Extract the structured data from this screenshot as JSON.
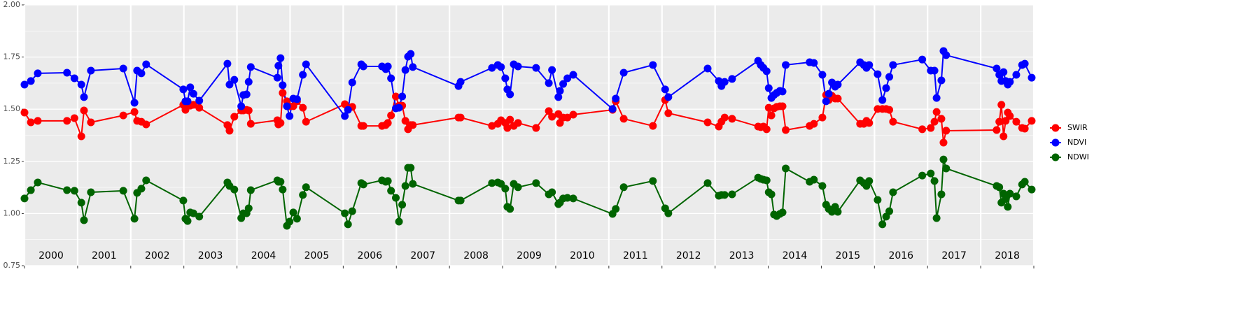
{
  "chart_data": {
    "type": "line",
    "x": [
      2000.0,
      2000.12,
      2000.25,
      2000.8,
      2000.94,
      2001.07,
      2001.12,
      2001.25,
      2001.86,
      2002.07,
      2002.12,
      2002.2,
      2002.29,
      2002.99,
      2003.03,
      2003.07,
      2003.12,
      2003.18,
      2003.29,
      2003.82,
      2003.86,
      2003.95,
      2004.08,
      2004.12,
      2004.18,
      2004.22,
      2004.26,
      2004.76,
      2004.78,
      2004.82,
      2004.86,
      2004.94,
      2004.99,
      2005.06,
      2005.13,
      2005.24,
      2005.3,
      2006.03,
      2006.09,
      2006.17,
      2006.34,
      2006.38,
      2006.73,
      2006.8,
      2006.84,
      2006.9,
      2006.99,
      2007.05,
      2007.11,
      2007.17,
      2007.22,
      2007.27,
      2007.31,
      2008.17,
      2008.21,
      2008.8,
      2008.91,
      2008.97,
      2009.05,
      2009.09,
      2009.14,
      2009.21,
      2009.29,
      2009.63,
      2009.87,
      2009.93,
      2010.05,
      2010.08,
      2010.14,
      2010.22,
      2010.33,
      2011.07,
      2011.13,
      2011.28,
      2011.83,
      2012.06,
      2012.12,
      2012.86,
      2013.07,
      2013.12,
      2013.18,
      2013.32,
      2013.81,
      2013.86,
      2013.91,
      2013.97,
      2014.01,
      2014.06,
      2014.11,
      2014.16,
      2014.22,
      2014.27,
      2014.33,
      2014.78,
      2014.86,
      2015.02,
      2015.09,
      2015.14,
      2015.2,
      2015.26,
      2015.31,
      2015.73,
      2015.8,
      2015.85,
      2015.9,
      2016.06,
      2016.15,
      2016.22,
      2016.28,
      2016.35,
      2016.9,
      2017.06,
      2017.13,
      2017.17,
      2017.26,
      2017.3,
      2017.35,
      2018.3,
      2018.35,
      2018.39,
      2018.43,
      2018.47,
      2018.51,
      2018.55,
      2018.67,
      2018.78,
      2018.83,
      2018.96
    ],
    "series": [
      {
        "name": "SWIR",
        "color": "#ff0000",
        "values": [
          1.484,
          1.437,
          1.444,
          1.444,
          1.457,
          1.37,
          1.494,
          1.437,
          1.47,
          1.487,
          1.444,
          1.44,
          1.427,
          1.521,
          1.497,
          1.521,
          1.517,
          1.521,
          1.507,
          1.424,
          1.397,
          1.464,
          1.494,
          1.494,
          1.497,
          1.494,
          1.43,
          1.447,
          1.427,
          1.434,
          1.578,
          1.538,
          1.514,
          1.514,
          1.538,
          1.507,
          1.44,
          1.524,
          1.504,
          1.511,
          1.42,
          1.42,
          1.42,
          1.424,
          1.434,
          1.47,
          1.561,
          1.517,
          1.517,
          1.444,
          1.404,
          1.424,
          1.424,
          1.46,
          1.46,
          1.42,
          1.43,
          1.447,
          1.434,
          1.41,
          1.45,
          1.42,
          1.434,
          1.41,
          1.491,
          1.464,
          1.477,
          1.434,
          1.46,
          1.46,
          1.474,
          1.497,
          1.538,
          1.454,
          1.42,
          1.544,
          1.481,
          1.437,
          1.417,
          1.44,
          1.46,
          1.454,
          1.417,
          1.414,
          1.417,
          1.404,
          1.507,
          1.47,
          1.504,
          1.511,
          1.514,
          1.514,
          1.4,
          1.42,
          1.43,
          1.46,
          1.568,
          1.544,
          1.564,
          1.551,
          1.551,
          1.43,
          1.43,
          1.444,
          1.434,
          1.501,
          1.501,
          1.501,
          1.497,
          1.44,
          1.404,
          1.41,
          1.44,
          1.487,
          1.454,
          1.34,
          1.397,
          1.4,
          1.44,
          1.521,
          1.37,
          1.444,
          1.484,
          1.467,
          1.44,
          1.41,
          1.407,
          1.444
        ]
      },
      {
        "name": "NDVI",
        "color": "#0000ff",
        "values": [
          1.618,
          1.635,
          1.672,
          1.675,
          1.648,
          1.618,
          1.558,
          1.685,
          1.695,
          1.531,
          1.685,
          1.672,
          1.715,
          1.595,
          1.538,
          1.538,
          1.605,
          1.574,
          1.541,
          1.718,
          1.618,
          1.641,
          1.514,
          1.568,
          1.571,
          1.631,
          1.702,
          1.651,
          1.708,
          1.745,
          1.615,
          1.514,
          1.467,
          1.551,
          1.548,
          1.665,
          1.715,
          1.467,
          1.497,
          1.628,
          1.715,
          1.705,
          1.705,
          1.692,
          1.705,
          1.648,
          1.504,
          1.507,
          1.561,
          1.688,
          1.752,
          1.765,
          1.702,
          1.611,
          1.631,
          1.698,
          1.712,
          1.702,
          1.648,
          1.595,
          1.571,
          1.715,
          1.705,
          1.698,
          1.625,
          1.688,
          1.558,
          1.588,
          1.621,
          1.648,
          1.665,
          1.501,
          1.551,
          1.675,
          1.712,
          1.595,
          1.558,
          1.695,
          1.635,
          1.611,
          1.631,
          1.645,
          1.732,
          1.712,
          1.698,
          1.682,
          1.601,
          1.554,
          1.568,
          1.578,
          1.588,
          1.585,
          1.712,
          1.725,
          1.722,
          1.665,
          1.538,
          1.574,
          1.628,
          1.608,
          1.618,
          1.725,
          1.712,
          1.698,
          1.712,
          1.668,
          1.544,
          1.601,
          1.655,
          1.712,
          1.738,
          1.685,
          1.685,
          1.554,
          1.638,
          1.779,
          1.759,
          1.695,
          1.665,
          1.635,
          1.678,
          1.635,
          1.618,
          1.631,
          1.665,
          1.712,
          1.718,
          1.651
        ]
      },
      {
        "name": "NDWI",
        "color": "#006400",
        "values": [
          1.072,
          1.112,
          1.149,
          1.112,
          1.109,
          1.052,
          0.968,
          1.102,
          1.109,
          0.975,
          1.099,
          1.119,
          1.159,
          1.062,
          0.975,
          0.964,
          1.005,
          1.001,
          0.985,
          1.149,
          1.132,
          1.115,
          0.978,
          1.001,
          1.001,
          1.025,
          1.112,
          1.159,
          1.152,
          1.152,
          1.115,
          0.941,
          0.961,
          1.005,
          0.975,
          1.089,
          1.126,
          1.001,
          0.948,
          1.011,
          1.146,
          1.139,
          1.159,
          1.152,
          1.156,
          1.109,
          1.075,
          0.961,
          1.042,
          1.132,
          1.219,
          1.219,
          1.142,
          1.062,
          1.062,
          1.146,
          1.149,
          1.142,
          1.119,
          1.032,
          1.022,
          1.142,
          1.126,
          1.146,
          1.092,
          1.102,
          1.045,
          1.052,
          1.072,
          1.075,
          1.072,
          0.998,
          1.022,
          1.126,
          1.156,
          1.025,
          1.001,
          1.146,
          1.085,
          1.089,
          1.089,
          1.092,
          1.172,
          1.166,
          1.162,
          1.159,
          1.102,
          1.092,
          0.995,
          0.988,
          0.998,
          1.005,
          1.216,
          1.152,
          1.162,
          1.132,
          1.042,
          1.022,
          1.008,
          1.032,
          1.008,
          1.159,
          1.146,
          1.132,
          1.156,
          1.065,
          0.948,
          0.985,
          1.011,
          1.102,
          1.182,
          1.192,
          1.156,
          0.978,
          1.092,
          1.259,
          1.216,
          1.132,
          1.126,
          1.052,
          1.095,
          1.069,
          1.032,
          1.095,
          1.082,
          1.139,
          1.152,
          1.115
        ]
      }
    ],
    "xlim": [
      2000,
      2019
    ],
    "xticks": [
      2000,
      2001,
      2002,
      2003,
      2004,
      2005,
      2006,
      2007,
      2008,
      2009,
      2010,
      2011,
      2012,
      2013,
      2014,
      2015,
      2016,
      2017,
      2018,
      2019
    ],
    "year_labels": [
      2000,
      2001,
      2002,
      2003,
      2004,
      2005,
      2006,
      2007,
      2008,
      2009,
      2010,
      2011,
      2012,
      2013,
      2014,
      2015,
      2016,
      2017,
      2018
    ],
    "ylim": [
      0.75,
      2.0
    ],
    "yticks": [
      0.75,
      {
        "value": 1,
        "label": "1.00"
      },
      1.25,
      {
        "value": 1.5,
        "label": "1.50"
      },
      1.75,
      {
        "value": 2,
        "label": "2.00"
      }
    ],
    "grid": true,
    "legend": "right"
  }
}
